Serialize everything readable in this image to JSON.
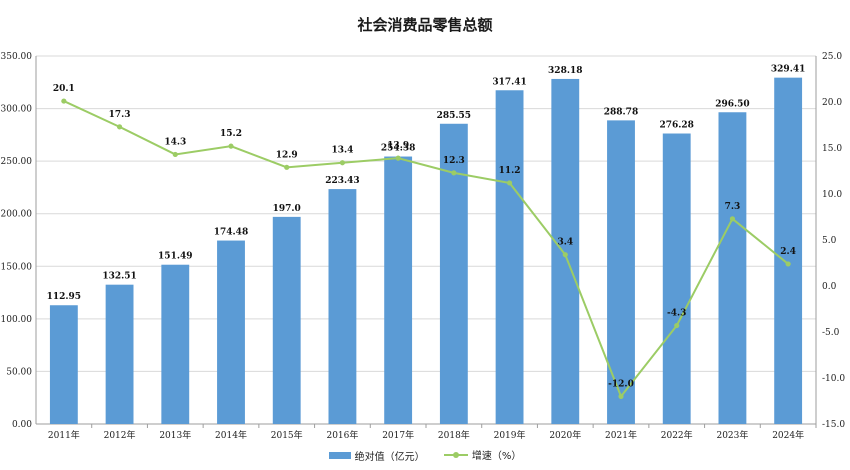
{
  "colors": {
    "bar": "#5b9bd5",
    "line": "#9ccc65",
    "grid": "#d9d9d9",
    "axis": "#9e9e9e"
  },
  "chart_data": {
    "type": "bar",
    "title": "社会消费品零售总额",
    "categories": [
      "2011年",
      "2012年",
      "2013年",
      "2014年",
      "2015年",
      "2016年",
      "2017年",
      "2018年",
      "2019年",
      "2020年",
      "2021年",
      "2022年",
      "2023年",
      "2024年"
    ],
    "series": [
      {
        "name": "绝对值（亿元）",
        "type": "bar",
        "axis": "left",
        "values": [
          112.95,
          132.51,
          151.49,
          174.48,
          197.0,
          223.43,
          254.38,
          285.55,
          317.41,
          328.18,
          288.78,
          276.28,
          296.5,
          329.41
        ],
        "labels": [
          "112.95",
          "132.51",
          "151.49",
          "174.48",
          "197.0",
          "223.43",
          "254.38",
          "285.55",
          "317.41",
          "328.18",
          "288.78",
          "276.28",
          "296.50",
          "329.41"
        ]
      },
      {
        "name": "增速（%）",
        "type": "line",
        "axis": "right",
        "values": [
          20.1,
          17.3,
          14.3,
          15.2,
          12.9,
          13.4,
          13.9,
          12.3,
          11.2,
          3.4,
          -12.0,
          -4.3,
          7.3,
          2.4
        ],
        "labels": [
          "20.1",
          "17.3",
          "14.3",
          "15.2",
          "12.9",
          "13.4",
          "13.9",
          "12.3",
          "11.2",
          "3.4",
          "-12.0",
          "-4.3",
          "7.3",
          "2.4"
        ]
      }
    ],
    "y_left": {
      "min": 0,
      "max": 350,
      "ticks": [
        "0.00",
        "50.00",
        "100.00",
        "150.00",
        "200.00",
        "250.00",
        "300.00",
        "350.00"
      ]
    },
    "y_right": {
      "min": -15,
      "max": 25,
      "ticks": [
        "-15.0",
        "-10.0",
        "-5.0",
        "0.0",
        "5.0",
        "10.0",
        "15.0",
        "20.0",
        "25.0"
      ]
    },
    "grid": true,
    "legend_position": "bottom"
  }
}
